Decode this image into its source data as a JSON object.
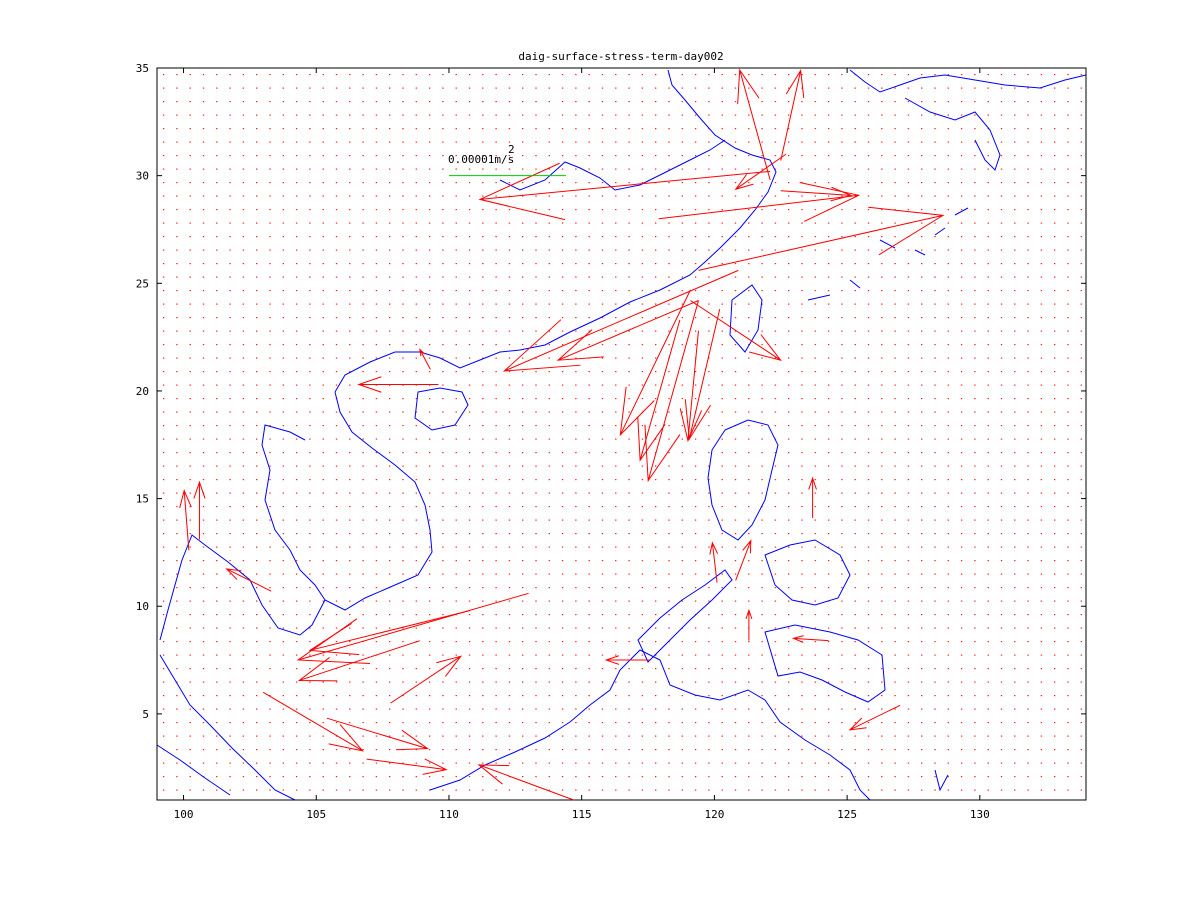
{
  "chart_data": {
    "type": "quiver",
    "title": "daig-surface-stress-term-day002",
    "xlim": [
      99,
      134
    ],
    "ylim": [
      1,
      35
    ],
    "xticks": [
      100,
      105,
      110,
      115,
      120,
      125,
      130
    ],
    "yticks": [
      5,
      10,
      15,
      20,
      25,
      30,
      35
    ],
    "color": "#ff0000",
    "key": {
      "label": "0.00001m/s",
      "exponent": "2",
      "value": 1e-05,
      "x": 110,
      "y": 30,
      "color": "#00cc00"
    },
    "x": [
      122.1,
      119.4,
      117.9,
      119.1,
      119.4,
      119.4,
      120.9,
      119.1,
      119.4,
      122.1,
      122.5,
      113.0,
      110.8,
      108.9,
      114.7,
      100.2,
      100.6,
      103.3,
      127.0,
      117.6,
      123.7,
      124.3,
      122.5,
      120.8,
      121.3,
      109.6,
      109.3,
      106.9,
      105.4,
      118.7,
      120.2,
      122.7,
      120.1,
      103.0,
      107.8
    ],
    "y": [
      30.2,
      25.6,
      28.0,
      24.7,
      24.2,
      24.2,
      25.6,
      24.2,
      22.8,
      29.8,
      30.7,
      10.6,
      9.8,
      8.4,
      1.0,
      12.6,
      13.1,
      10.7,
      5.4,
      7.5,
      14.1,
      8.4,
      29.3,
      11.2,
      8.4,
      20.3,
      21.0,
      2.9,
      4.8,
      23.3,
      23.8,
      31.0,
      11.1,
      6.0,
      5.5
    ],
    "u": [
      -2.48e-05,
      2.09e-05,
      1.71e-05,
      -6e-06,
      -4.3e-06,
      -1.2e-05,
      -2e-05,
      7.7e-06,
      -9e-07,
      -2.6e-06,
      1.7e-06,
      -1.97e-05,
      -1.37e-05,
      -1.03e-05,
      -8.1e-06,
      -4e-07,
      0.0,
      -3.8e-06,
      -4.3e-06,
      -3.8e-06,
      0.0,
      -3e-06,
      6e-06,
      1.3e-06,
      0.0,
      -6.8e-06,
      -9e-07,
      6.8e-06,
      8.6e-06,
      -3.4e-06,
      -2.6e-06,
      -4.3e-06,
      -4e-07,
      8.5e-06,
      6e-06
    ],
    "v": [
      -2.4e-06,
      4.7e-06,
      2e-06,
      -1.24e-05,
      -1.54e-05,
      -5.1e-06,
      -8.6e-06,
      -5.1e-06,
      -9.4e-06,
      9.4e-06,
      7.7e-06,
      -5.7e-06,
      -3.4e-06,
      -3.4e-06,
      3e-06,
      5.1e-06,
      4.9e-06,
      1.9e-06,
      -2.1e-06,
      0.0,
      3.4e-06,
      2e-07,
      -4e-07,
      3.4e-06,
      2.6e-06,
      0.0,
      1.7e-06,
      -9e-07,
      -2.6e-06,
      -1.2e-05,
      -1.11e-05,
      -3e-06,
      3.4e-06,
      -5e-06,
      4e-06
    ]
  }
}
